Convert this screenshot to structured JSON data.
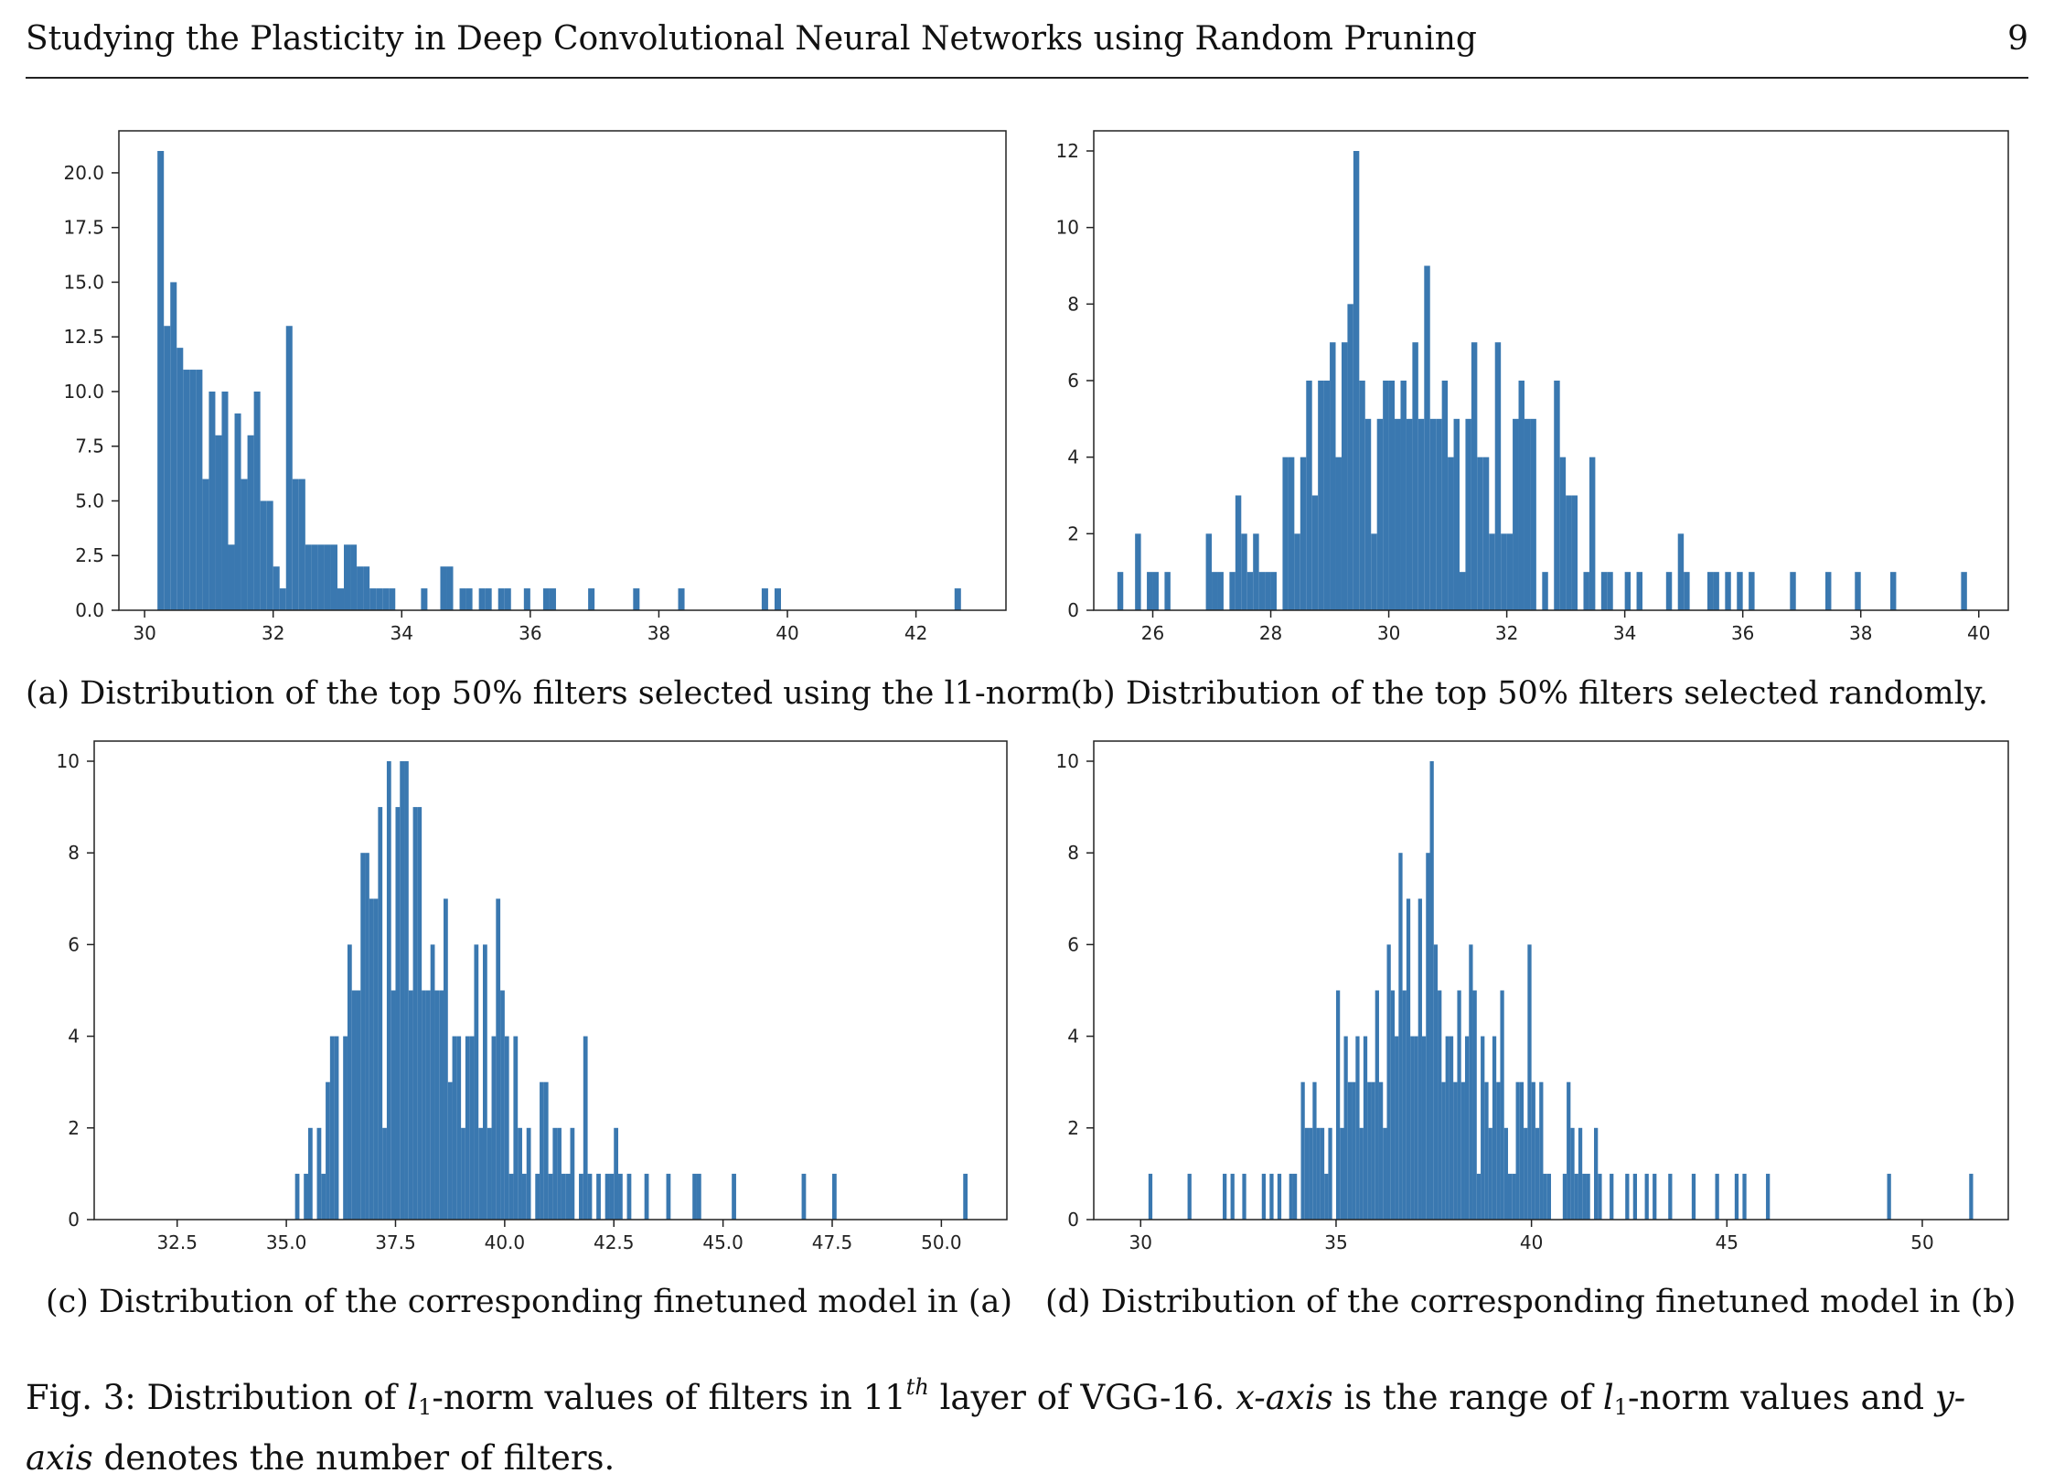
{
  "header": {
    "title": "Studying the Plasticity in Deep Convolutional Neural Networks using Random Pruning",
    "page_number": "9"
  },
  "captions": {
    "a": "(a) Distribution of the top 50% filters selected using the l1-norm",
    "b": "(b) Distribution of the top 50% filters selected randomly.",
    "c": "(c) Distribution of the corresponding finetuned model in (a)",
    "d": "(d) Distribution of the corresponding finetuned model in (b)"
  },
  "figure_caption": {
    "label": "Fig. 3:",
    "text_1": "Distribution of",
    "l1": "l",
    "sub1": "1",
    "text_2": "-norm values of filters in 11",
    "sup": "th",
    "text_3": "layer of VGG-16.",
    "xaxis": "x-axis",
    "text_4": "is the range of",
    "text_5": "-norm values and",
    "yaxis": "y-axis",
    "text_6": "denotes the number of filters."
  },
  "colors": {
    "bar": "#3a78b0",
    "axis": "#222222"
  },
  "chart_data": [
    {
      "id": "a",
      "type": "bar",
      "xlim": [
        29.6,
        43.4
      ],
      "ylim": [
        0,
        21.0
      ],
      "xticks": [
        "30",
        "32",
        "34",
        "36",
        "38",
        "40",
        "42"
      ],
      "yticks": [
        "0.0",
        "2.5",
        "5.0",
        "7.5",
        "10.0",
        "12.5",
        "15.0",
        "17.5",
        "20.0"
      ],
      "bin_width": 0.1,
      "bins": [
        [
          30.2,
          21
        ],
        [
          30.3,
          13
        ],
        [
          30.4,
          15
        ],
        [
          30.5,
          12
        ],
        [
          30.6,
          11
        ],
        [
          30.7,
          11
        ],
        [
          30.8,
          11
        ],
        [
          30.9,
          6
        ],
        [
          31.0,
          10
        ],
        [
          31.1,
          8
        ],
        [
          31.2,
          10
        ],
        [
          31.3,
          3
        ],
        [
          31.4,
          9
        ],
        [
          31.5,
          6
        ],
        [
          31.6,
          8
        ],
        [
          31.7,
          10
        ],
        [
          31.8,
          5
        ],
        [
          31.9,
          5
        ],
        [
          32.0,
          2
        ],
        [
          32.1,
          1
        ],
        [
          32.2,
          13
        ],
        [
          32.3,
          6
        ],
        [
          32.4,
          6
        ],
        [
          32.5,
          3
        ],
        [
          32.6,
          3
        ],
        [
          32.7,
          3
        ],
        [
          32.8,
          3
        ],
        [
          32.9,
          3
        ],
        [
          33.0,
          1
        ],
        [
          33.1,
          3
        ],
        [
          33.2,
          3
        ],
        [
          33.3,
          2
        ],
        [
          33.4,
          2
        ],
        [
          33.5,
          1
        ],
        [
          33.6,
          1
        ],
        [
          33.7,
          1
        ],
        [
          33.8,
          1
        ],
        [
          34.3,
          1
        ],
        [
          34.6,
          2
        ],
        [
          34.7,
          2
        ],
        [
          34.9,
          1
        ],
        [
          35.0,
          1
        ],
        [
          35.2,
          1
        ],
        [
          35.3,
          1
        ],
        [
          35.5,
          1
        ],
        [
          35.6,
          1
        ],
        [
          35.9,
          1
        ],
        [
          36.2,
          1
        ],
        [
          36.3,
          1
        ],
        [
          36.9,
          1
        ],
        [
          37.6,
          1
        ],
        [
          38.3,
          1
        ],
        [
          39.6,
          1
        ],
        [
          39.8,
          1
        ],
        [
          42.6,
          1
        ]
      ]
    },
    {
      "id": "b",
      "type": "bar",
      "xlim": [
        25.0,
        40.5
      ],
      "ylim": [
        0,
        12.0
      ],
      "xticks": [
        "26",
        "28",
        "30",
        "32",
        "34",
        "36",
        "38",
        "40"
      ],
      "yticks": [
        "0",
        "2",
        "4",
        "6",
        "8",
        "10",
        "12"
      ],
      "bin_width": 0.1,
      "bins": [
        [
          25.4,
          1
        ],
        [
          25.7,
          2
        ],
        [
          25.9,
          1
        ],
        [
          26.0,
          1
        ],
        [
          26.2,
          1
        ],
        [
          26.9,
          2
        ],
        [
          27.0,
          1
        ],
        [
          27.1,
          1
        ],
        [
          27.3,
          1
        ],
        [
          27.4,
          3
        ],
        [
          27.5,
          2
        ],
        [
          27.6,
          1
        ],
        [
          27.7,
          2
        ],
        [
          27.8,
          1
        ],
        [
          27.9,
          1
        ],
        [
          28.0,
          1
        ],
        [
          28.2,
          4
        ],
        [
          28.3,
          4
        ],
        [
          28.4,
          2
        ],
        [
          28.5,
          4
        ],
        [
          28.6,
          6
        ],
        [
          28.7,
          3
        ],
        [
          28.8,
          6
        ],
        [
          28.9,
          6
        ],
        [
          29.0,
          7
        ],
        [
          29.1,
          4
        ],
        [
          29.2,
          7
        ],
        [
          29.3,
          8
        ],
        [
          29.4,
          12
        ],
        [
          29.5,
          6
        ],
        [
          29.6,
          5
        ],
        [
          29.7,
          2
        ],
        [
          29.8,
          5
        ],
        [
          29.9,
          6
        ],
        [
          30.0,
          6
        ],
        [
          30.1,
          5
        ],
        [
          30.2,
          6
        ],
        [
          30.3,
          5
        ],
        [
          30.4,
          7
        ],
        [
          30.5,
          5
        ],
        [
          30.6,
          9
        ],
        [
          30.7,
          5
        ],
        [
          30.8,
          5
        ],
        [
          30.9,
          6
        ],
        [
          31.0,
          4
        ],
        [
          31.1,
          5
        ],
        [
          31.2,
          1
        ],
        [
          31.3,
          5
        ],
        [
          31.4,
          7
        ],
        [
          31.5,
          4
        ],
        [
          31.6,
          4
        ],
        [
          31.7,
          2
        ],
        [
          31.8,
          7
        ],
        [
          31.9,
          2
        ],
        [
          32.0,
          2
        ],
        [
          32.1,
          5
        ],
        [
          32.2,
          6
        ],
        [
          32.3,
          5
        ],
        [
          32.4,
          5
        ],
        [
          32.6,
          1
        ],
        [
          32.8,
          6
        ],
        [
          32.9,
          4
        ],
        [
          33.0,
          3
        ],
        [
          33.1,
          3
        ],
        [
          33.3,
          1
        ],
        [
          33.4,
          4
        ],
        [
          33.6,
          1
        ],
        [
          33.7,
          1
        ],
        [
          34.0,
          1
        ],
        [
          34.2,
          1
        ],
        [
          34.7,
          1
        ],
        [
          34.9,
          2
        ],
        [
          35.0,
          1
        ],
        [
          35.4,
          1
        ],
        [
          35.5,
          1
        ],
        [
          35.7,
          1
        ],
        [
          35.9,
          1
        ],
        [
          36.1,
          1
        ],
        [
          36.8,
          1
        ],
        [
          37.4,
          1
        ],
        [
          37.9,
          1
        ],
        [
          38.5,
          1
        ],
        [
          39.7,
          1
        ]
      ]
    },
    {
      "id": "c",
      "type": "bar",
      "xlim": [
        30.6,
        51.5
      ],
      "ylim": [
        0,
        10.0
      ],
      "xticks": [
        "32.5",
        "35.0",
        "37.5",
        "40.0",
        "42.5",
        "45.0",
        "47.5",
        "50.0"
      ],
      "yticks": [
        "0",
        "2",
        "4",
        "6",
        "8",
        "10"
      ],
      "bin_width": 0.1,
      "bins": [
        [
          35.2,
          1
        ],
        [
          35.4,
          1
        ],
        [
          35.5,
          2
        ],
        [
          35.7,
          2
        ],
        [
          35.8,
          1
        ],
        [
          35.9,
          3
        ],
        [
          36.0,
          4
        ],
        [
          36.1,
          4
        ],
        [
          36.3,
          4
        ],
        [
          36.4,
          6
        ],
        [
          36.5,
          5
        ],
        [
          36.6,
          5
        ],
        [
          36.7,
          8
        ],
        [
          36.8,
          8
        ],
        [
          36.9,
          7
        ],
        [
          37.0,
          7
        ],
        [
          37.1,
          9
        ],
        [
          37.2,
          2
        ],
        [
          37.3,
          10
        ],
        [
          37.4,
          5
        ],
        [
          37.5,
          9
        ],
        [
          37.6,
          10
        ],
        [
          37.7,
          10
        ],
        [
          37.8,
          5
        ],
        [
          37.9,
          9
        ],
        [
          38.0,
          9
        ],
        [
          38.1,
          5
        ],
        [
          38.2,
          5
        ],
        [
          38.3,
          6
        ],
        [
          38.4,
          5
        ],
        [
          38.5,
          5
        ],
        [
          38.6,
          7
        ],
        [
          38.7,
          3
        ],
        [
          38.8,
          4
        ],
        [
          38.9,
          4
        ],
        [
          39.0,
          2
        ],
        [
          39.1,
          4
        ],
        [
          39.2,
          4
        ],
        [
          39.3,
          6
        ],
        [
          39.4,
          2
        ],
        [
          39.5,
          6
        ],
        [
          39.6,
          2
        ],
        [
          39.7,
          4
        ],
        [
          39.8,
          7
        ],
        [
          39.9,
          5
        ],
        [
          40.0,
          4
        ],
        [
          40.1,
          1
        ],
        [
          40.2,
          4
        ],
        [
          40.3,
          2
        ],
        [
          40.4,
          1
        ],
        [
          40.5,
          2
        ],
        [
          40.7,
          1
        ],
        [
          40.8,
          3
        ],
        [
          40.9,
          3
        ],
        [
          41.0,
          1
        ],
        [
          41.1,
          2
        ],
        [
          41.2,
          2
        ],
        [
          41.3,
          1
        ],
        [
          41.4,
          1
        ],
        [
          41.5,
          2
        ],
        [
          41.7,
          1
        ],
        [
          41.8,
          4
        ],
        [
          41.9,
          1
        ],
        [
          42.1,
          1
        ],
        [
          42.3,
          1
        ],
        [
          42.4,
          1
        ],
        [
          42.5,
          2
        ],
        [
          42.6,
          1
        ],
        [
          42.8,
          1
        ],
        [
          43.2,
          1
        ],
        [
          43.7,
          1
        ],
        [
          44.3,
          1
        ],
        [
          44.4,
          1
        ],
        [
          45.2,
          1
        ],
        [
          46.8,
          1
        ],
        [
          47.5,
          1
        ],
        [
          50.5,
          1
        ]
      ]
    },
    {
      "id": "d",
      "type": "bar",
      "xlim": [
        28.8,
        52.2
      ],
      "ylim": [
        0,
        10.0
      ],
      "xticks": [
        "30",
        "35",
        "40",
        "45",
        "50"
      ],
      "yticks": [
        "0",
        "2",
        "4",
        "6",
        "8",
        "10"
      ],
      "bin_width": 0.1,
      "bins": [
        [
          30.2,
          1
        ],
        [
          31.2,
          1
        ],
        [
          32.1,
          1
        ],
        [
          32.3,
          1
        ],
        [
          32.6,
          1
        ],
        [
          33.1,
          1
        ],
        [
          33.3,
          1
        ],
        [
          33.5,
          1
        ],
        [
          33.8,
          1
        ],
        [
          33.9,
          1
        ],
        [
          34.1,
          3
        ],
        [
          34.2,
          2
        ],
        [
          34.3,
          2
        ],
        [
          34.4,
          3
        ],
        [
          34.5,
          2
        ],
        [
          34.6,
          2
        ],
        [
          34.7,
          1
        ],
        [
          34.8,
          2
        ],
        [
          35.0,
          5
        ],
        [
          35.1,
          2
        ],
        [
          35.2,
          4
        ],
        [
          35.3,
          3
        ],
        [
          35.4,
          3
        ],
        [
          35.5,
          4
        ],
        [
          35.6,
          2
        ],
        [
          35.7,
          4
        ],
        [
          35.8,
          3
        ],
        [
          35.9,
          3
        ],
        [
          36.0,
          5
        ],
        [
          36.1,
          3
        ],
        [
          36.2,
          2
        ],
        [
          36.3,
          6
        ],
        [
          36.4,
          5
        ],
        [
          36.5,
          4
        ],
        [
          36.6,
          8
        ],
        [
          36.7,
          5
        ],
        [
          36.8,
          7
        ],
        [
          36.9,
          4
        ],
        [
          37.0,
          4
        ],
        [
          37.1,
          7
        ],
        [
          37.2,
          4
        ],
        [
          37.3,
          8
        ],
        [
          37.4,
          10
        ],
        [
          37.5,
          6
        ],
        [
          37.6,
          5
        ],
        [
          37.7,
          3
        ],
        [
          37.8,
          4
        ],
        [
          37.9,
          4
        ],
        [
          38.0,
          3
        ],
        [
          38.1,
          5
        ],
        [
          38.2,
          3
        ],
        [
          38.3,
          4
        ],
        [
          38.4,
          6
        ],
        [
          38.5,
          5
        ],
        [
          38.6,
          1
        ],
        [
          38.7,
          4
        ],
        [
          38.8,
          3
        ],
        [
          38.9,
          2
        ],
        [
          39.0,
          4
        ],
        [
          39.1,
          3
        ],
        [
          39.2,
          5
        ],
        [
          39.3,
          2
        ],
        [
          39.4,
          1
        ],
        [
          39.5,
          1
        ],
        [
          39.6,
          3
        ],
        [
          39.7,
          3
        ],
        [
          39.8,
          2
        ],
        [
          39.9,
          6
        ],
        [
          40.0,
          3
        ],
        [
          40.1,
          2
        ],
        [
          40.2,
          3
        ],
        [
          40.3,
          1
        ],
        [
          40.4,
          1
        ],
        [
          40.8,
          1
        ],
        [
          40.9,
          3
        ],
        [
          41.0,
          2
        ],
        [
          41.1,
          1
        ],
        [
          41.2,
          2
        ],
        [
          41.3,
          1
        ],
        [
          41.4,
          1
        ],
        [
          41.6,
          2
        ],
        [
          41.7,
          1
        ],
        [
          42.0,
          1
        ],
        [
          42.4,
          1
        ],
        [
          42.6,
          1
        ],
        [
          42.9,
          1
        ],
        [
          43.1,
          1
        ],
        [
          43.5,
          1
        ],
        [
          44.1,
          1
        ],
        [
          44.7,
          1
        ],
        [
          45.2,
          1
        ],
        [
          45.4,
          1
        ],
        [
          46.0,
          1
        ],
        [
          49.1,
          1
        ],
        [
          51.2,
          1
        ]
      ]
    }
  ]
}
